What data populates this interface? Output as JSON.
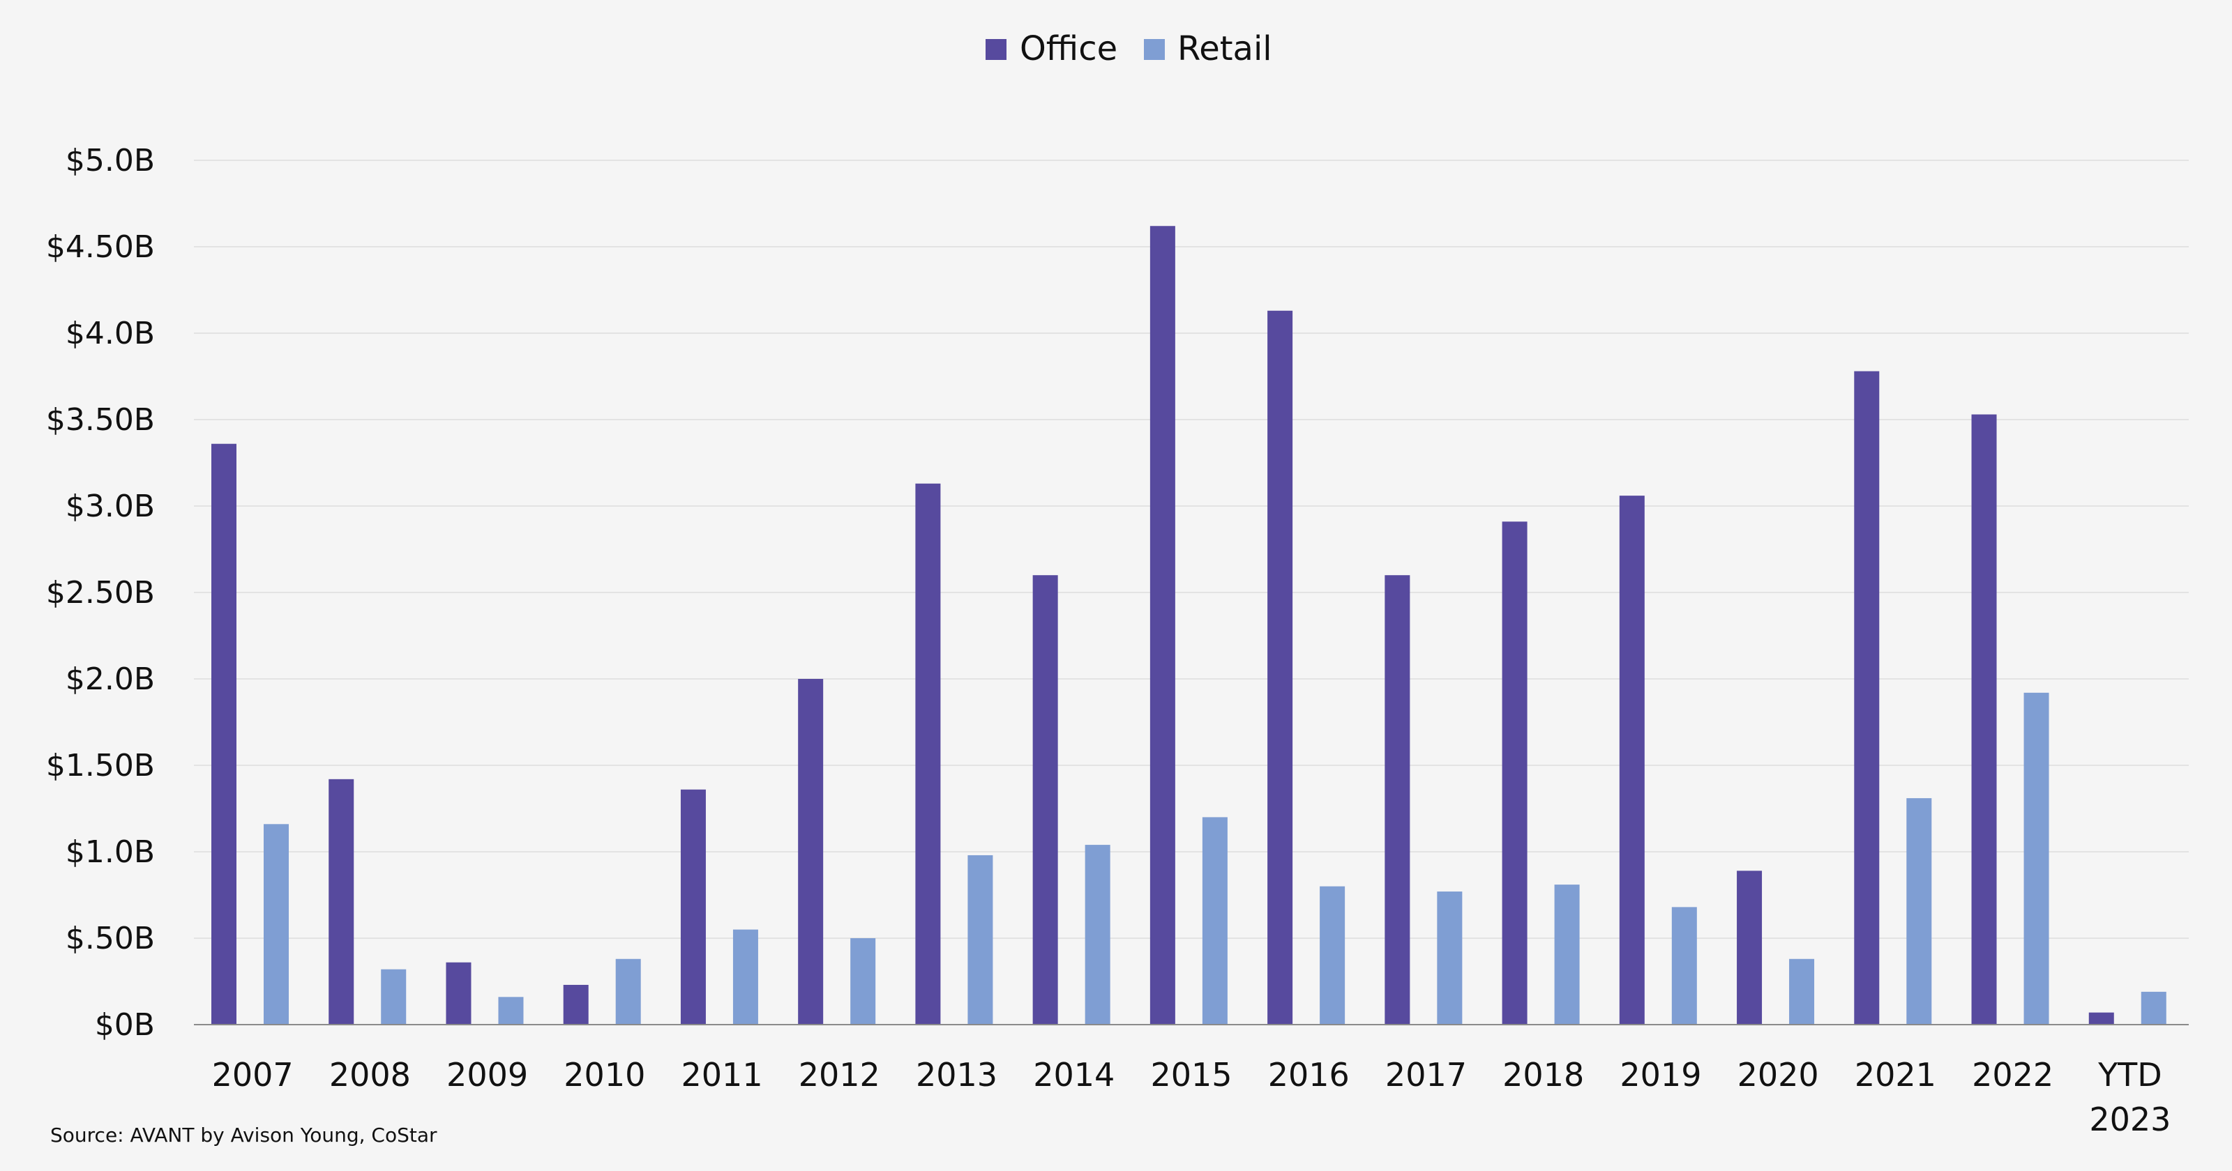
{
  "chart_data": {
    "type": "bar",
    "categories": [
      "2007",
      "2008",
      "2009",
      "2010",
      "2011",
      "2012",
      "2013",
      "2014",
      "2015",
      "2016",
      "2017",
      "2018",
      "2019",
      "2020",
      "2021",
      "2022",
      "YTD 2023"
    ],
    "category_lines": [
      [
        "2007"
      ],
      [
        "2008"
      ],
      [
        "2009"
      ],
      [
        "2010"
      ],
      [
        "2011"
      ],
      [
        "2012"
      ],
      [
        "2013"
      ],
      [
        "2014"
      ],
      [
        "2015"
      ],
      [
        "2016"
      ],
      [
        "2017"
      ],
      [
        "2018"
      ],
      [
        "2019"
      ],
      [
        "2020"
      ],
      [
        "2021"
      ],
      [
        "2022"
      ],
      [
        "YTD",
        "2023"
      ]
    ],
    "series": [
      {
        "name": "Office",
        "color": "#574a9e",
        "values": [
          3.36,
          1.42,
          0.36,
          0.23,
          1.36,
          2.0,
          3.13,
          2.6,
          4.62,
          4.13,
          2.6,
          2.91,
          3.06,
          0.89,
          3.78,
          3.53,
          0.07
        ]
      },
      {
        "name": "Retail",
        "color": "#7f9ed3",
        "values": [
          1.16,
          0.32,
          0.16,
          0.38,
          0.55,
          0.5,
          0.98,
          1.04,
          1.2,
          0.8,
          0.77,
          0.81,
          0.68,
          0.38,
          1.31,
          1.92,
          0.19
        ]
      }
    ],
    "y_ticks": [
      {
        "value": 0,
        "label": "$0B"
      },
      {
        "value": 0.5,
        "label": "$.50B"
      },
      {
        "value": 1.0,
        "label": "$1.0B"
      },
      {
        "value": 1.5,
        "label": "$1.50B"
      },
      {
        "value": 2.0,
        "label": "$2.0B"
      },
      {
        "value": 2.5,
        "label": "$2.50B"
      },
      {
        "value": 3.0,
        "label": "$3.0B"
      },
      {
        "value": 3.5,
        "label": "$3.50B"
      },
      {
        "value": 4.0,
        "label": "$4.0B"
      },
      {
        "value": 4.5,
        "label": "$4.50B"
      },
      {
        "value": 5.0,
        "label": "$5.0B"
      }
    ],
    "ylim": [
      0,
      5
    ],
    "grid": true,
    "legend_position": "top-center",
    "source": "Source: AVANT by Avison Young, CoStar"
  }
}
